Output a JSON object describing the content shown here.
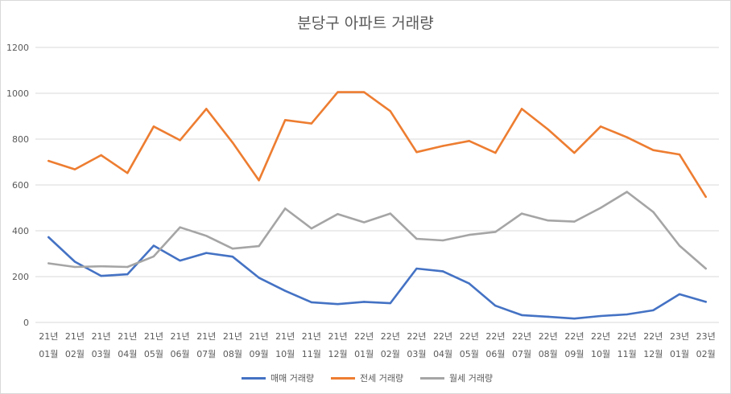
{
  "chart_data": {
    "type": "line",
    "title": "분당구 아파트 거래량",
    "xlabel": "",
    "ylabel": "",
    "ylim": [
      0,
      1200
    ],
    "yticks": [
      "0",
      "200",
      "400",
      "600",
      "800",
      "1000",
      "1200"
    ],
    "grid": true,
    "legend_position": "bottom",
    "categories": [
      [
        "21년",
        "01월"
      ],
      [
        "21년",
        "02월"
      ],
      [
        "21년",
        "03월"
      ],
      [
        "21년",
        "04월"
      ],
      [
        "21년",
        "05월"
      ],
      [
        "21년",
        "06월"
      ],
      [
        "21년",
        "07월"
      ],
      [
        "21년",
        "08월"
      ],
      [
        "21년",
        "09월"
      ],
      [
        "21년",
        "10월"
      ],
      [
        "21년",
        "11월"
      ],
      [
        "21년",
        "12월"
      ],
      [
        "22년",
        "01월"
      ],
      [
        "22년",
        "02월"
      ],
      [
        "22년",
        "03월"
      ],
      [
        "22년",
        "04월"
      ],
      [
        "22년",
        "05월"
      ],
      [
        "22년",
        "06월"
      ],
      [
        "22년",
        "07월"
      ],
      [
        "22년",
        "08월"
      ],
      [
        "22년",
        "09월"
      ],
      [
        "22년",
        "10월"
      ],
      [
        "22년",
        "11월"
      ],
      [
        "22년",
        "12월"
      ],
      [
        "23년",
        "01월"
      ],
      [
        "23년",
        "02월"
      ]
    ],
    "series": [
      {
        "name": "매매 거래량",
        "color": "#4472c4",
        "values": [
          372,
          265,
          203,
          210,
          335,
          270,
          303,
          287,
          195,
          138,
          88,
          80,
          90,
          84,
          235,
          223,
          170,
          73,
          32,
          25,
          17,
          28,
          35,
          53,
          123,
          90
        ]
      },
      {
        "name": "전세 거래량",
        "color": "#ed7d31",
        "values": [
          705,
          668,
          730,
          652,
          855,
          795,
          932,
          785,
          620,
          883,
          868,
          1005,
          1005,
          922,
          743,
          770,
          792,
          740,
          932,
          842,
          740,
          855,
          808,
          752,
          733,
          548
        ]
      },
      {
        "name": "월세 거래량",
        "color": "#a5a5a5",
        "values": [
          258,
          242,
          245,
          242,
          288,
          415,
          378,
          322,
          333,
          497,
          410,
          473,
          437,
          475,
          365,
          358,
          382,
          395,
          475,
          445,
          440,
          500,
          570,
          482,
          335,
          235
        ]
      }
    ]
  }
}
